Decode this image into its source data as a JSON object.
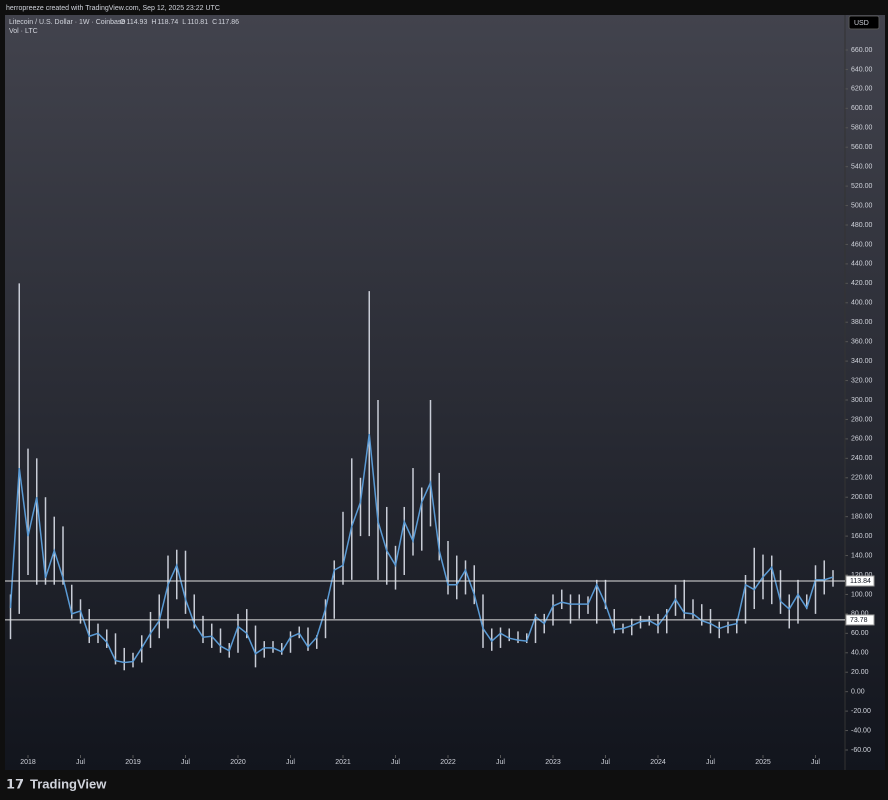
{
  "header": {
    "credit": "herropreeze created with TradingView.com, Sep 12, 2025 23:22 UTC"
  },
  "footer": {
    "brand": "TradingView"
  },
  "chart_data": {
    "type": "line",
    "title": "Litecoin / U.S. Dollar · 1W · Coinbase",
    "ohlc_labels": [
      "O",
      "H",
      "L",
      "C"
    ],
    "ohlc": [
      114.93,
      118.74,
      110.81,
      117.86
    ],
    "subtitle": "Vol · LTC",
    "currency": "USD",
    "x": [
      "2017-11",
      "2017-12",
      "2018-01",
      "2018-02",
      "2018-03",
      "2018-04",
      "2018-05",
      "2018-06",
      "2018-07",
      "2018-08",
      "2018-09",
      "2018-10",
      "2018-11",
      "2018-12",
      "2019-01",
      "2019-02",
      "2019-03",
      "2019-04",
      "2019-05",
      "2019-06",
      "2019-07",
      "2019-08",
      "2019-09",
      "2019-10",
      "2019-11",
      "2019-12",
      "2020-01",
      "2020-02",
      "2020-03",
      "2020-04",
      "2020-05",
      "2020-06",
      "2020-07",
      "2020-08",
      "2020-09",
      "2020-10",
      "2020-11",
      "2020-12",
      "2021-01",
      "2021-02",
      "2021-03",
      "2021-04",
      "2021-05",
      "2021-06",
      "2021-07",
      "2021-08",
      "2021-09",
      "2021-10",
      "2021-11",
      "2021-12",
      "2022-01",
      "2022-02",
      "2022-03",
      "2022-04",
      "2022-05",
      "2022-06",
      "2022-07",
      "2022-08",
      "2022-09",
      "2022-10",
      "2022-11",
      "2022-12",
      "2023-01",
      "2023-02",
      "2023-03",
      "2023-04",
      "2023-05",
      "2023-06",
      "2023-07",
      "2023-08",
      "2023-09",
      "2023-10",
      "2023-11",
      "2023-12",
      "2024-01",
      "2024-02",
      "2024-03",
      "2024-04",
      "2024-05",
      "2024-06",
      "2024-07",
      "2024-08",
      "2024-09",
      "2024-10",
      "2024-11",
      "2024-12",
      "2025-01",
      "2025-02",
      "2025-03",
      "2025-04",
      "2025-05",
      "2025-06",
      "2025-07",
      "2025-08",
      "2025-09"
    ],
    "series": [
      {
        "name": "Close",
        "color": "#5b9bd5",
        "values": [
          86,
          230,
          160,
          200,
          117,
          145,
          117,
          80,
          83,
          57,
          60,
          51,
          32,
          30,
          31,
          45,
          60,
          73,
          110,
          130,
          95,
          70,
          56,
          57,
          47,
          42,
          67,
          60,
          39,
          45,
          45,
          41,
          56,
          60,
          46,
          56,
          85,
          125,
          130,
          170,
          195,
          265,
          175,
          145,
          130,
          175,
          155,
          195,
          215,
          145,
          110,
          110,
          125,
          100,
          65,
          52,
          60,
          55,
          53,
          52,
          77,
          70,
          88,
          92,
          90,
          90,
          90,
          110,
          90,
          64,
          65,
          68,
          72,
          73,
          68,
          80,
          95,
          81,
          80,
          73,
          70,
          65,
          68,
          70,
          110,
          105,
          118,
          128,
          93,
          85,
          100,
          86,
          115,
          115,
          117.86
        ]
      },
      {
        "name": "High",
        "color": "#c8ccd6",
        "values": [
          100,
          420,
          250,
          240,
          200,
          180,
          170,
          110,
          95,
          85,
          70,
          64,
          60,
          45,
          40,
          58,
          82,
          100,
          140,
          146,
          145,
          100,
          78,
          70,
          65,
          50,
          80,
          85,
          68,
          52,
          52,
          50,
          62,
          67,
          66,
          58,
          95,
          135,
          185,
          240,
          220,
          412,
          300,
          190,
          150,
          190,
          230,
          210,
          300,
          225,
          155,
          140,
          135,
          130,
          100,
          65,
          66,
          65,
          62,
          60,
          80,
          80,
          100,
          105,
          100,
          100,
          98,
          115,
          115,
          85,
          70,
          75,
          78,
          78,
          80,
          85,
          110,
          115,
          95,
          90,
          85,
          72,
          72,
          75,
          120,
          148,
          141,
          140,
          125,
          100,
          115,
          100,
          130,
          135,
          125
        ]
      },
      {
        "name": "Low",
        "color": "#c8ccd6",
        "values": [
          54,
          80,
          120,
          110,
          110,
          110,
          110,
          75,
          70,
          50,
          50,
          45,
          28,
          22,
          25,
          30,
          45,
          55,
          65,
          95,
          80,
          65,
          50,
          45,
          40,
          35,
          40,
          55,
          25,
          35,
          40,
          38,
          40,
          55,
          42,
          44,
          55,
          75,
          110,
          115,
          160,
          160,
          115,
          110,
          105,
          120,
          140,
          145,
          170,
          135,
          100,
          95,
          100,
          90,
          45,
          42,
          45,
          52,
          50,
          50,
          50,
          60,
          68,
          85,
          70,
          75,
          80,
          70,
          85,
          60,
          60,
          58,
          65,
          68,
          60,
          60,
          78,
          75,
          75,
          68,
          60,
          55,
          60,
          60,
          70,
          85,
          95,
          90,
          80,
          65,
          70,
          85,
          80,
          100,
          108
        ]
      }
    ],
    "hlines": [
      113.84,
      73.78
    ],
    "ylim": [
      -60,
      660
    ],
    "yticks": [
      {
        "value": -60,
        "label": "-60.00"
      },
      {
        "value": -40,
        "label": "-40.00"
      },
      {
        "value": -20,
        "label": "-20.00"
      },
      {
        "value": 0,
        "label": "0.00"
      },
      {
        "value": 20,
        "label": "20.00"
      },
      {
        "value": 40,
        "label": "40.00"
      },
      {
        "value": 60,
        "label": "60.00"
      },
      {
        "value": 80,
        "label": "80.00"
      },
      {
        "value": 100,
        "label": "100.00"
      },
      {
        "value": 120,
        "label": "120.00"
      },
      {
        "value": 140,
        "label": "140.00"
      },
      {
        "value": 160,
        "label": "160.00"
      },
      {
        "value": 180,
        "label": "180.00"
      },
      {
        "value": 200,
        "label": "200.00"
      },
      {
        "value": 220,
        "label": "220.00"
      },
      {
        "value": 240,
        "label": "240.00"
      },
      {
        "value": 260,
        "label": "260.00"
      },
      {
        "value": 280,
        "label": "280.00"
      },
      {
        "value": 300,
        "label": "300.00"
      },
      {
        "value": 320,
        "label": "320.00"
      },
      {
        "value": 340,
        "label": "340.00"
      },
      {
        "value": 360,
        "label": "360.00"
      },
      {
        "value": 380,
        "label": "380.00"
      },
      {
        "value": 400,
        "label": "400.00"
      },
      {
        "value": 420,
        "label": "420.00"
      },
      {
        "value": 440,
        "label": "440.00"
      },
      {
        "value": 460,
        "label": "460.00"
      },
      {
        "value": 480,
        "label": "480.00"
      },
      {
        "value": 500,
        "label": "500.00"
      },
      {
        "value": 520,
        "label": "520.00"
      },
      {
        "value": 540,
        "label": "540.00"
      },
      {
        "value": 560,
        "label": "560.00"
      },
      {
        "value": 580,
        "label": "580.00"
      },
      {
        "value": 600,
        "label": "600.00"
      },
      {
        "value": 620,
        "label": "620.00"
      },
      {
        "value": 640,
        "label": "640.00"
      },
      {
        "value": 660,
        "label": "660.00"
      }
    ],
    "xticks": [
      {
        "value": "2018-01",
        "label": "2018"
      },
      {
        "value": "2018-07",
        "label": "Jul"
      },
      {
        "value": "2019-01",
        "label": "2019"
      },
      {
        "value": "2019-07",
        "label": "Jul"
      },
      {
        "value": "2020-01",
        "label": "2020"
      },
      {
        "value": "2020-07",
        "label": "Jul"
      },
      {
        "value": "2021-01",
        "label": "2021"
      },
      {
        "value": "2021-07",
        "label": "Jul"
      },
      {
        "value": "2022-01",
        "label": "2022"
      },
      {
        "value": "2022-07",
        "label": "Jul"
      },
      {
        "value": "2023-01",
        "label": "2023"
      },
      {
        "value": "2023-07",
        "label": "Jul"
      },
      {
        "value": "2024-01",
        "label": "2024"
      },
      {
        "value": "2024-07",
        "label": "Jul"
      },
      {
        "value": "2025-01",
        "label": "2025"
      },
      {
        "value": "2025-07",
        "label": "Jul"
      }
    ]
  }
}
